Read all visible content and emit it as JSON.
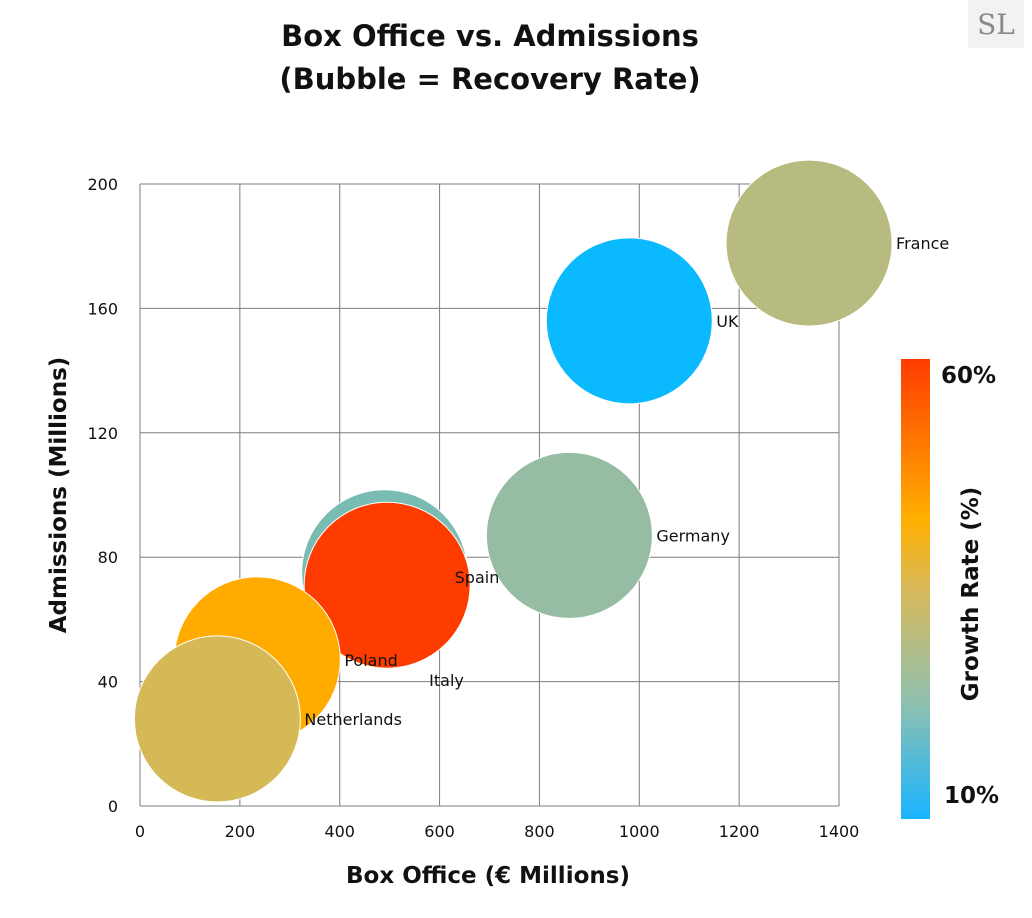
{
  "logo_text": "SL",
  "chart_data": {
    "type": "scatter",
    "title_lines": [
      "Box Office vs. Admissions",
      "(Bubble = Recovery Rate)"
    ],
    "xlabel": "Box Office (€ Millions)",
    "ylabel": "Admissions (Millions)",
    "xlim": [
      0,
      1400
    ],
    "ylim": [
      0,
      200
    ],
    "xticks": [
      0,
      200,
      400,
      600,
      800,
      1000,
      1200,
      1400
    ],
    "yticks": [
      0,
      40,
      80,
      120,
      160,
      200
    ],
    "grid": true,
    "colorbar": {
      "label": "Growth Rate (%)",
      "min_label": "10%",
      "max_label": "60%",
      "range": [
        10,
        60
      ]
    },
    "points": [
      {
        "name": "France",
        "x": 1340,
        "y": 181,
        "growth": 35,
        "color": "#b7bb80"
      },
      {
        "name": "UK",
        "x": 980,
        "y": 156,
        "growth": 10,
        "color": "#0bb9ff"
      },
      {
        "name": "Germany",
        "x": 860,
        "y": 87,
        "growth": 25,
        "color": "#96bca4"
      },
      {
        "name": "Spain",
        "x": 490,
        "y": 75,
        "growth": 22,
        "color": "#79bcb3"
      },
      {
        "name": "Italy",
        "x": 495,
        "y": 71,
        "growth": 60,
        "color": "#ff3c00"
      },
      {
        "name": "Poland",
        "x": 235,
        "y": 47,
        "growth": 50,
        "color": "#ffab00"
      },
      {
        "name": "Netherlands",
        "x": 155,
        "y": 28,
        "growth": 42,
        "color": "#d6b957"
      }
    ]
  }
}
